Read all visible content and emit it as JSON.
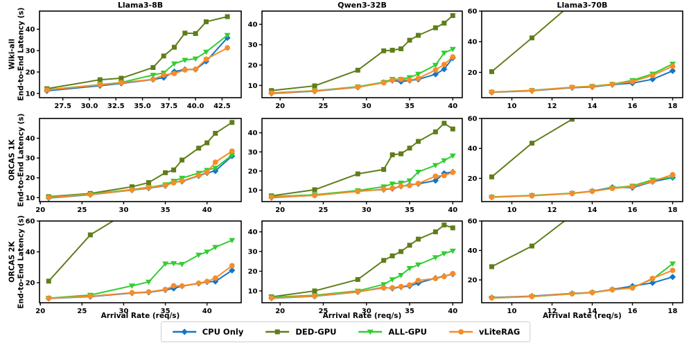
{
  "axes": {
    "xlabel": "Arrival Rate (req/s)",
    "ylabel_line": "End-to-End Latency (s)"
  },
  "rows": [
    "Wiki-all",
    "ORCAS 1K",
    "ORCAS 2K"
  ],
  "cols": [
    "Llama3-8B",
    "Qwen3-32B",
    "Llama3-70B"
  ],
  "legend": {
    "items": [
      {
        "label": "CPU Only",
        "marker": "diamond",
        "color": "#1574c8"
      },
      {
        "label": "DED-GPU",
        "marker": "square",
        "color": "#5f7d19"
      },
      {
        "label": "ALL-GPU",
        "marker": "triangle-down",
        "color": "#32cd32"
      },
      {
        "label": "vLiteRAG",
        "marker": "circle",
        "color": "#f78c28"
      }
    ]
  },
  "chart_data": [
    {
      "type": "line",
      "grid_pos": [
        0,
        0
      ],
      "title": "Llama3-8B",
      "row_label": "Wiki-all",
      "x": [
        26,
        31,
        33,
        36,
        37,
        38,
        39,
        40,
        41,
        43
      ],
      "series": [
        {
          "name": "CPU Only",
          "values": [
            11.2,
            13.6,
            14.7,
            16.5,
            17.4,
            20.2,
            21.2,
            21.2,
            25.0,
            36.0
          ]
        },
        {
          "name": "DED-GPU",
          "values": [
            12.2,
            16.4,
            17.1,
            22.1,
            27.5,
            31.6,
            38.2,
            38.0,
            43.5,
            45.9
          ]
        },
        {
          "name": "ALL-GPU",
          "values": [
            11.7,
            14.1,
            15.1,
            18.6,
            19.6,
            23.9,
            25.6,
            26.2,
            29.4,
            37.2
          ]
        },
        {
          "name": "vLiteRAG",
          "values": [
            11.6,
            14.0,
            15.0,
            16.6,
            18.6,
            19.3,
            21.0,
            21.3,
            26.0,
            31.3
          ]
        }
      ],
      "xticks": [
        "27.5",
        "30.0",
        "32.5",
        "35.0",
        "37.5",
        "40.0",
        "42.5"
      ],
      "yticks": [
        "10",
        "20",
        "30",
        "40"
      ],
      "xlim": [
        25.3,
        44.3
      ],
      "ylim": [
        8,
        48.5
      ]
    },
    {
      "type": "line",
      "grid_pos": [
        0,
        1
      ],
      "title": "Qwen3-32B",
      "row_label": "Wiki-all",
      "x": [
        19,
        24,
        29,
        32,
        33,
        34,
        35,
        36,
        38,
        39,
        40
      ],
      "series": [
        {
          "name": "CPU Only",
          "values": [
            6.1,
            7.2,
            9.1,
            11.5,
            12.4,
            11.9,
            12.4,
            13.0,
            15.5,
            18.0,
            23.5
          ]
        },
        {
          "name": "DED-GPU",
          "values": [
            7.5,
            9.8,
            17.5,
            27.0,
            27.3,
            28.0,
            32.2,
            34.6,
            38.3,
            40.6,
            44.3
          ]
        },
        {
          "name": "ALL-GPU",
          "values": [
            6.4,
            7.4,
            9.4,
            11.6,
            13.1,
            13.1,
            13.9,
            15.6,
            20.0,
            26.0,
            27.8
          ]
        },
        {
          "name": "vLiteRAG",
          "values": [
            6.3,
            7.3,
            9.2,
            11.3,
            12.6,
            13.0,
            12.6,
            13.5,
            17.6,
            20.3,
            24.0
          ]
        }
      ],
      "xticks": [
        "20",
        "25",
        "30",
        "35",
        "40"
      ],
      "yticks": [
        "10",
        "20",
        "30",
        "40"
      ],
      "xlim": [
        17.9,
        41.1
      ],
      "ylim": [
        4,
        46.5
      ]
    },
    {
      "type": "line",
      "grid_pos": [
        0,
        2
      ],
      "title": "Llama3-70B",
      "row_label": "Wiki-all",
      "x": [
        9,
        11,
        13,
        14,
        15,
        16,
        17,
        18
      ],
      "series": [
        {
          "name": "CPU Only",
          "values": [
            7.0,
            8.0,
            10.0,
            10.5,
            12.0,
            13.0,
            15.5,
            21.0
          ]
        },
        {
          "name": "DED-GPU",
          "values": [
            20.5,
            42.5,
            65,
            null,
            null,
            null,
            null,
            null
          ]
        },
        {
          "name": "ALL-GPU",
          "values": [
            7.2,
            8.3,
            10.3,
            11.0,
            12.3,
            14.8,
            19.0,
            25.5
          ]
        },
        {
          "name": "vLiteRAG",
          "values": [
            7.1,
            8.2,
            10.2,
            10.8,
            12.2,
            14.0,
            18.0,
            24.0
          ]
        }
      ],
      "xticks": [
        "10",
        "12",
        "14",
        "16",
        "18"
      ],
      "yticks": [
        "20",
        "40",
        "60"
      ],
      "xlim": [
        8.5,
        18.5
      ],
      "ylim": [
        3.5,
        60
      ]
    },
    {
      "type": "line",
      "grid_pos": [
        1,
        0
      ],
      "title": "Llama3-8B",
      "row_label": "ORCAS 1K",
      "x": [
        21,
        26,
        31,
        33,
        35,
        36,
        37,
        39,
        40,
        41,
        43
      ],
      "series": [
        {
          "name": "CPU Only",
          "values": [
            9.8,
            11.5,
            13.8,
            14.8,
            16.0,
            17.9,
            18.2,
            21.0,
            22.5,
            23.5,
            31.0
          ]
        },
        {
          "name": "DED-GPU",
          "values": [
            10.5,
            12.1,
            15.5,
            17.6,
            22.6,
            24.0,
            29.0,
            35.0,
            37.7,
            42.5,
            48.0
          ]
        },
        {
          "name": "ALL-GPU",
          "values": [
            10.2,
            11.8,
            14.1,
            15.2,
            16.6,
            18.4,
            19.9,
            22.4,
            23.9,
            25.0,
            31.5
          ]
        },
        {
          "name": "vLiteRAG",
          "values": [
            10.0,
            11.6,
            13.9,
            15.0,
            16.2,
            17.5,
            18.4,
            21.2,
            22.8,
            27.9,
            33.5
          ]
        }
      ],
      "xticks": [
        "20",
        "25",
        "30",
        "35",
        "40"
      ],
      "yticks": [
        "10",
        "20",
        "30",
        "40"
      ],
      "xlim": [
        19.9,
        44.1
      ],
      "ylim": [
        8,
        50
      ]
    },
    {
      "type": "line",
      "grid_pos": [
        1,
        1
      ],
      "title": "Qwen3-32B",
      "row_label": "ORCAS 1K",
      "x": [
        19,
        24,
        29,
        32,
        33,
        34,
        35,
        36,
        38,
        39,
        40
      ],
      "series": [
        {
          "name": "CPU Only",
          "values": [
            6.1,
            7.3,
            9.5,
            10.3,
            10.8,
            12.0,
            12.8,
            13.3,
            15.0,
            18.8,
            19.5
          ]
        },
        {
          "name": "DED-GPU",
          "values": [
            7.0,
            10.2,
            18.5,
            20.8,
            28.5,
            29.0,
            32.0,
            35.5,
            40.5,
            45.0,
            42.0
          ]
        },
        {
          "name": "ALL-GPU",
          "values": [
            6.6,
            7.6,
            9.8,
            11.8,
            13.3,
            13.8,
            15.0,
            19.5,
            23.0,
            25.5,
            28.0
          ]
        },
        {
          "name": "vLiteRAG",
          "values": [
            6.3,
            7.2,
            9.3,
            10.5,
            11.0,
            12.1,
            12.4,
            13.5,
            17.3,
            17.6,
            19.3
          ]
        }
      ],
      "xticks": [
        "20",
        "25",
        "30",
        "35",
        "40"
      ],
      "yticks": [
        "10",
        "20",
        "30",
        "40"
      ],
      "xlim": [
        17.9,
        41.1
      ],
      "ylim": [
        4,
        47.5
      ]
    },
    {
      "type": "line",
      "grid_pos": [
        1,
        2
      ],
      "title": "Llama3-70B",
      "row_label": "ORCAS 1K",
      "x": [
        9,
        11,
        13,
        14,
        15,
        16,
        17,
        18
      ],
      "series": [
        {
          "name": "CPU Only",
          "values": [
            7.5,
            8.5,
            10.0,
            11.5,
            14.0,
            13.8,
            17.8,
            20.5
          ]
        },
        {
          "name": "DED-GPU",
          "values": [
            21.0,
            43.5,
            59.5,
            null,
            null,
            null,
            null,
            null
          ]
        },
        {
          "name": "ALL-GPU",
          "values": [
            7.6,
            8.6,
            10.1,
            11.4,
            13.5,
            15.0,
            19.0,
            20.8
          ]
        },
        {
          "name": "vLiteRAG",
          "values": [
            7.4,
            8.4,
            9.9,
            11.3,
            13.3,
            14.5,
            18.0,
            22.5
          ]
        }
      ],
      "xticks": [
        "10",
        "12",
        "14",
        "16",
        "18"
      ],
      "yticks": [
        "20",
        "40",
        "60"
      ],
      "xlim": [
        8.5,
        18.5
      ],
      "ylim": [
        4.5,
        60
      ]
    },
    {
      "type": "line",
      "grid_pos": [
        2,
        0
      ],
      "title": "Llama3-8B",
      "row_label": "ORCAS 2K",
      "x": [
        21,
        26,
        31,
        33,
        35,
        36,
        37,
        39,
        40,
        41,
        43
      ],
      "series": [
        {
          "name": "CPU Only",
          "values": [
            9.8,
            11.0,
            13.3,
            13.8,
            15.3,
            16.3,
            17.8,
            19.5,
            20.5,
            20.8,
            28.0
          ]
        },
        {
          "name": "DED-GPU",
          "values": [
            21.0,
            51.0,
            67.5,
            null,
            null,
            null,
            null,
            null,
            null,
            null,
            null
          ]
        },
        {
          "name": "ALL-GPU",
          "values": [
            10.0,
            12.0,
            18.0,
            20.5,
            32.3,
            32.5,
            32.0,
            38.0,
            40.0,
            43.0,
            47.5
          ]
        },
        {
          "name": "vLiteRAG",
          "values": [
            9.9,
            11.2,
            13.5,
            14.0,
            15.6,
            18.0,
            17.9,
            19.7,
            20.8,
            23.0,
            31.0
          ]
        }
      ],
      "xticks": [
        "20",
        "25",
        "30",
        "35",
        "40"
      ],
      "yticks": [
        "20",
        "40",
        "60"
      ],
      "xlim": [
        19.9,
        44.1
      ],
      "ylim": [
        7,
        60
      ]
    },
    {
      "type": "line",
      "grid_pos": [
        2,
        1
      ],
      "title": "Qwen3-32B",
      "row_label": "ORCAS 2K",
      "x": [
        19,
        24,
        29,
        32,
        33,
        34,
        35,
        36,
        38,
        39,
        40
      ],
      "series": [
        {
          "name": "CPU Only",
          "values": [
            6.3,
            7.3,
            9.5,
            11.8,
            11.3,
            12.0,
            12.5,
            14.0,
            16.5,
            17.5,
            18.5
          ]
        },
        {
          "name": "DED-GPU",
          "values": [
            7.0,
            10.0,
            15.8,
            25.5,
            27.8,
            30.0,
            33.2,
            36.3,
            40.0,
            43.5,
            42.0
          ]
        },
        {
          "name": "ALL-GPU",
          "values": [
            6.8,
            7.8,
            10.0,
            13.3,
            15.8,
            18.0,
            21.5,
            23.3,
            27.0,
            29.0,
            30.3
          ]
        },
        {
          "name": "vLiteRAG",
          "values": [
            6.4,
            7.4,
            9.6,
            11.5,
            11.6,
            12.2,
            13.0,
            15.3,
            16.3,
            17.3,
            18.8
          ]
        }
      ],
      "xticks": [
        "20",
        "25",
        "30",
        "35",
        "40"
      ],
      "yticks": [
        "10",
        "20",
        "30",
        "40"
      ],
      "xlim": [
        17.9,
        41.1
      ],
      "ylim": [
        4,
        45.5
      ]
    },
    {
      "type": "line",
      "grid_pos": [
        2,
        2
      ],
      "title": "Llama3-70B",
      "row_label": "ORCAS 2K",
      "x": [
        9,
        11,
        13,
        14,
        15,
        16,
        17,
        18
      ],
      "series": [
        {
          "name": "CPU Only",
          "values": [
            8.0,
            9.0,
            10.8,
            11.5,
            13.5,
            15.8,
            18.0,
            22.0
          ]
        },
        {
          "name": "DED-GPU",
          "values": [
            29.0,
            43.0,
            64,
            null,
            null,
            null,
            null,
            null
          ]
        },
        {
          "name": "ALL-GPU",
          "values": [
            7.7,
            8.7,
            10.5,
            11.3,
            13.2,
            14.8,
            20.5,
            31.0
          ]
        },
        {
          "name": "vLiteRAG",
          "values": [
            7.8,
            8.8,
            10.6,
            11.4,
            13.3,
            14.5,
            21.0,
            26.5
          ]
        }
      ],
      "xticks": [
        "10",
        "12",
        "14",
        "16",
        "18"
      ],
      "yticks": [
        "20",
        "40",
        "60"
      ],
      "xlim": [
        8.5,
        18.5
      ],
      "ylim": [
        4.5,
        60
      ]
    }
  ]
}
